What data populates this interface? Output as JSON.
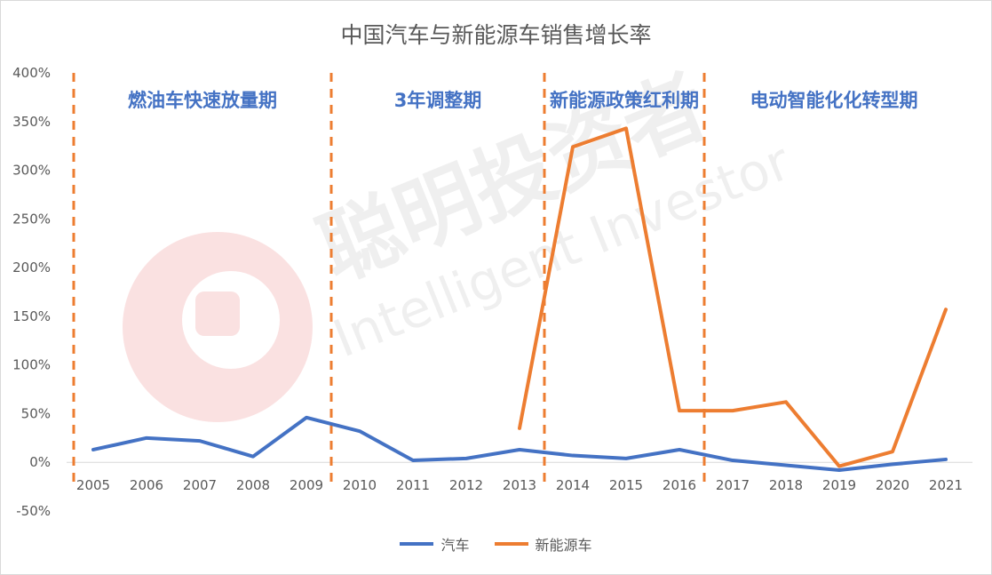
{
  "chart_data": {
    "type": "line",
    "title": "中国汽车与新能源车销售增长率",
    "x": [
      "2005",
      "2006",
      "2007",
      "2008",
      "2009",
      "2010",
      "2011",
      "2012",
      "2013",
      "2014",
      "2015",
      "2016",
      "2017",
      "2018",
      "2019",
      "2020",
      "2021"
    ],
    "ylim": [
      -0.5,
      4.0
    ],
    "yticks": [
      -0.5,
      0,
      0.5,
      1.0,
      1.5,
      2.0,
      2.5,
      3.0,
      3.5,
      4.0
    ],
    "ytick_labels": [
      "-50%",
      "0%",
      "50%",
      "100%",
      "150%",
      "200%",
      "250%",
      "300%",
      "350%",
      "400%"
    ],
    "grid": false,
    "legend_position": "bottom",
    "series": [
      {
        "name": "汽车",
        "color": "#4472c4",
        "values": [
          0.13,
          0.25,
          0.22,
          0.06,
          0.46,
          0.32,
          0.02,
          0.04,
          0.13,
          0.07,
          0.04,
          0.13,
          0.02,
          -0.03,
          -0.08,
          -0.02,
          0.03
        ]
      },
      {
        "name": "新能源车",
        "color": "#ed7d31",
        "values": [
          null,
          null,
          null,
          null,
          null,
          null,
          null,
          null,
          0.35,
          3.24,
          3.43,
          0.53,
          0.53,
          0.62,
          -0.04,
          0.11,
          1.57
        ]
      }
    ],
    "annotations": {
      "phase_labels": [
        "燃油车快速放量期",
        "3年调整期",
        "新能源政策红利期",
        "电动智能化化转型期"
      ],
      "phase_label_color": "#4472c4",
      "divider_color": "#ed7d31",
      "dividers": [
        {
          "after_category": "2004"
        },
        {
          "after_category": "2009"
        },
        {
          "after_category": "2013"
        },
        {
          "after_category": "2016"
        }
      ]
    }
  },
  "watermark": {
    "text_cn": "聪明投资者",
    "text_en": "Intelligent Investor"
  }
}
